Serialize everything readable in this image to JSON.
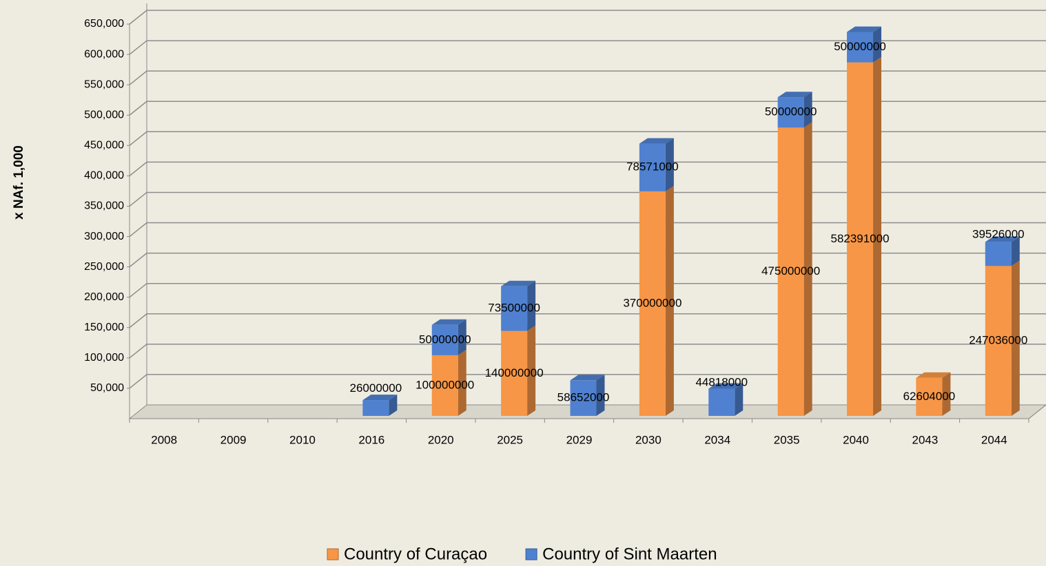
{
  "chart_data": {
    "type": "bar",
    "stacked": true,
    "y_axis_label": "x NAf. 1,000",
    "categories": [
      "2008",
      "2009",
      "2010",
      "2016",
      "2020",
      "2025",
      "2029",
      "2030",
      "2034",
      "2035",
      "2040",
      "2043",
      "2044"
    ],
    "series": [
      {
        "name": "Country of Curaçao",
        "color": "#f79646",
        "values": [
          null,
          null,
          null,
          null,
          100000,
          140000,
          null,
          370000,
          null,
          475000,
          582391,
          62604,
          247036
        ],
        "value_labels": [
          null,
          null,
          null,
          null,
          "100000000",
          "140000000",
          null,
          "370000000",
          null,
          "475000000",
          "582391000",
          "62604000",
          "247036000"
        ]
      },
      {
        "name": "Country of Sint Maarten",
        "color": "#4f81d0",
        "values": [
          null,
          null,
          null,
          26000,
          50000,
          73500,
          58652,
          78571,
          44818,
          50000,
          50000,
          null,
          39526
        ],
        "value_labels": [
          null,
          null,
          null,
          "26000000",
          "50000000",
          "73500000",
          "58652000",
          "78571000",
          "44818000",
          "50000000",
          "50000000",
          null,
          "39526000"
        ]
      }
    ],
    "ylim": [
      0,
      650000
    ],
    "yticks": [
      {
        "value": 50000,
        "label": "50,000"
      },
      {
        "value": 100000,
        "label": "100,000"
      },
      {
        "value": 150000,
        "label": "150,000"
      },
      {
        "value": 200000,
        "label": "200,000"
      },
      {
        "value": 250000,
        "label": "250,000"
      },
      {
        "value": 300000,
        "label": "300,000"
      },
      {
        "value": 350000,
        "label": "350,000"
      },
      {
        "value": 400000,
        "label": "400,000"
      },
      {
        "value": 450000,
        "label": "450,000"
      },
      {
        "value": 500000,
        "label": "500,000"
      },
      {
        "value": 550000,
        "label": "550,000"
      },
      {
        "value": 600000,
        "label": "600,000"
      },
      {
        "value": 650000,
        "label": "650,000"
      }
    ],
    "grid": true
  }
}
